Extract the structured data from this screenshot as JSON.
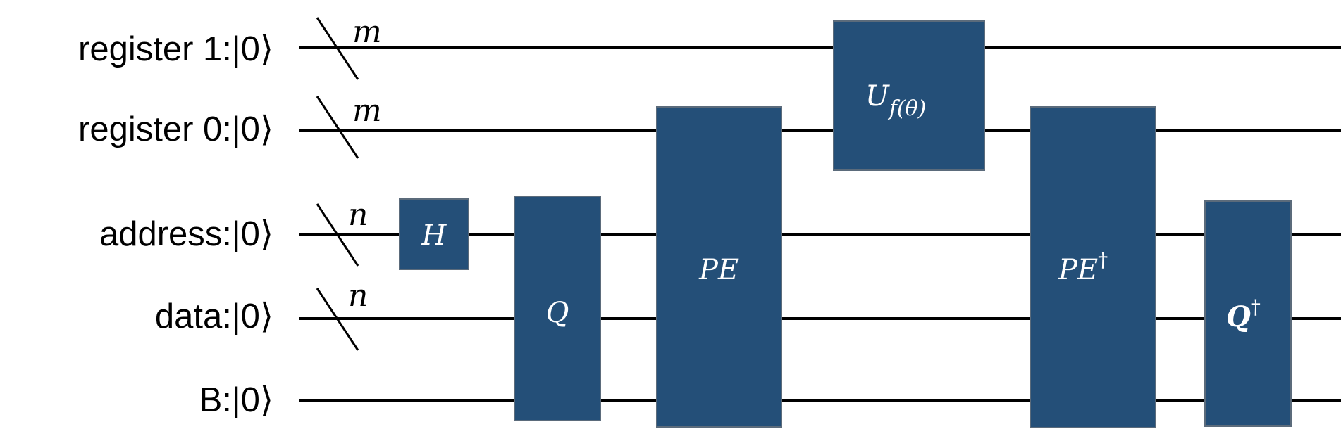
{
  "qubits": [
    {
      "label": "register 1:|0⟩",
      "bus": "m"
    },
    {
      "label": "register 0:|0⟩",
      "bus": "m"
    },
    {
      "label": "address:|0⟩",
      "bus": "n"
    },
    {
      "label": "data:|0⟩",
      "bus": "n"
    },
    {
      "label": "B:|0⟩",
      "bus": ""
    }
  ],
  "gates": {
    "h": {
      "main": "H"
    },
    "q": {
      "main": "Q"
    },
    "pe": {
      "main": "PE"
    },
    "uf": {
      "main": "U",
      "sub": "f(θ)"
    },
    "pe_dag": {
      "main": "PE",
      "sup": "†"
    },
    "q_dag": {
      "main": "Q",
      "sup": "†"
    }
  },
  "colors": {
    "gate_fill": "#244f78",
    "gate_text": "#ffffff",
    "wire": "#000000"
  }
}
